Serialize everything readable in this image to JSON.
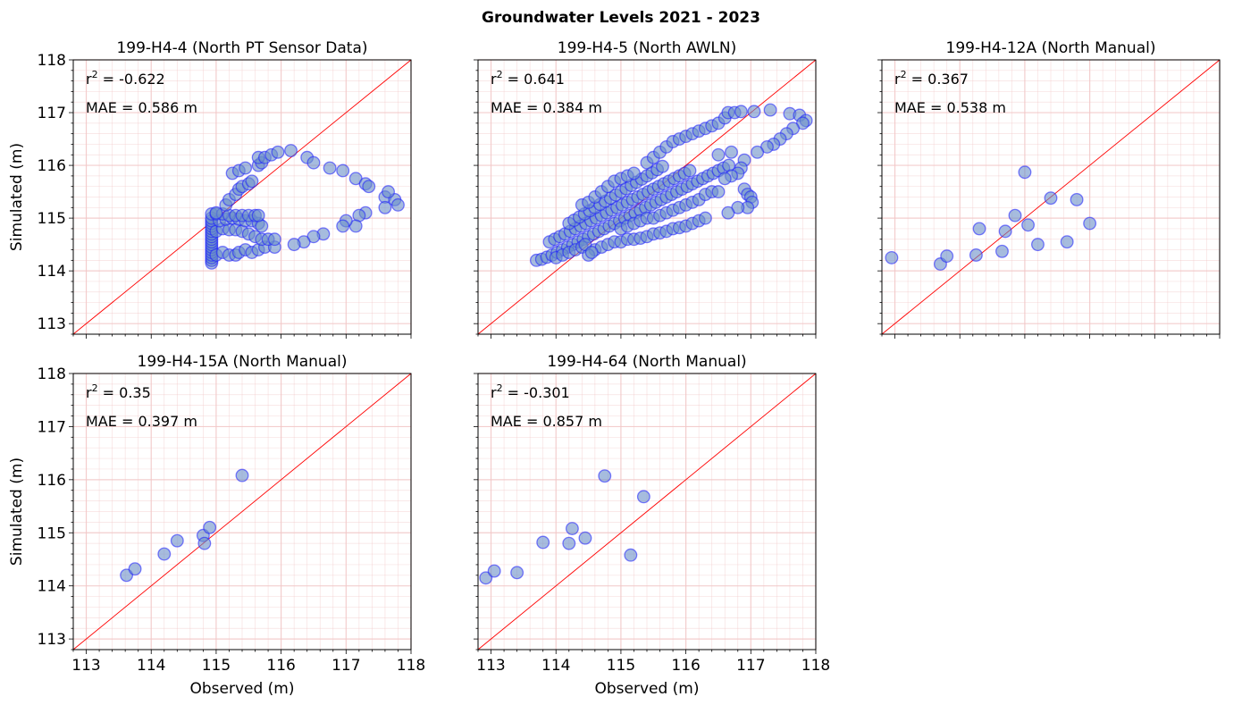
{
  "figure": {
    "title": "Groundwater Levels 2021 - 2023"
  },
  "axes_text": {
    "ylabel": "Simulated (m)",
    "xlabel": "Observed (m)"
  },
  "style": {
    "point_fill": "#6a8fc8",
    "point_stroke": "#1a1aff",
    "identity_line": "#ff0000",
    "grid": "#f2c8c8"
  },
  "chart_data": [
    {
      "type": "scatter",
      "title": "199-H4-4 (North PT Sensor Data)",
      "r2": "-0.622",
      "mae_label": "MAE = 0.586 m",
      "xlim": [
        112.8,
        118
      ],
      "ylim": [
        112.8,
        118
      ],
      "ticks": [
        113,
        114,
        115,
        116,
        117,
        118
      ],
      "points": [
        [
          114.93,
          114.15
        ],
        [
          114.93,
          114.2
        ],
        [
          114.93,
          114.25
        ],
        [
          114.93,
          114.3
        ],
        [
          114.93,
          114.35
        ],
        [
          114.93,
          114.4
        ],
        [
          114.93,
          114.45
        ],
        [
          114.93,
          114.5
        ],
        [
          114.93,
          114.55
        ],
        [
          114.93,
          114.6
        ],
        [
          114.93,
          114.65
        ],
        [
          114.93,
          114.7
        ],
        [
          114.93,
          114.75
        ],
        [
          114.93,
          114.8
        ],
        [
          114.93,
          114.85
        ],
        [
          114.93,
          114.9
        ],
        [
          114.93,
          114.95
        ],
        [
          114.93,
          115.0
        ],
        [
          114.93,
          115.08
        ],
        [
          115.0,
          114.3
        ],
        [
          115.1,
          114.35
        ],
        [
          115.2,
          114.3
        ],
        [
          115.3,
          114.3
        ],
        [
          115.35,
          114.35
        ],
        [
          115.45,
          114.4
        ],
        [
          115.55,
          114.35
        ],
        [
          115.65,
          114.4
        ],
        [
          115.75,
          114.45
        ],
        [
          115.9,
          114.45
        ],
        [
          115.0,
          114.75
        ],
        [
          115.1,
          114.8
        ],
        [
          115.2,
          114.78
        ],
        [
          115.3,
          114.78
        ],
        [
          115.4,
          114.75
        ],
        [
          115.5,
          114.7
        ],
        [
          115.6,
          114.65
        ],
        [
          115.7,
          114.6
        ],
        [
          115.8,
          114.6
        ],
        [
          115.9,
          114.6
        ],
        [
          115.05,
          114.95
        ],
        [
          115.15,
          114.98
        ],
        [
          115.25,
          115.0
        ],
        [
          115.35,
          114.98
        ],
        [
          115.45,
          114.95
        ],
        [
          115.55,
          114.95
        ],
        [
          115.65,
          114.9
        ],
        [
          115.7,
          114.85
        ],
        [
          115.0,
          115.08
        ],
        [
          115.1,
          115.08
        ],
        [
          115.2,
          115.05
        ],
        [
          115.3,
          115.05
        ],
        [
          115.4,
          115.05
        ],
        [
          115.5,
          115.05
        ],
        [
          115.6,
          115.05
        ],
        [
          115.65,
          115.05
        ],
        [
          115.0,
          115.1
        ],
        [
          115.15,
          115.25
        ],
        [
          115.2,
          115.35
        ],
        [
          115.3,
          115.45
        ],
        [
          115.35,
          115.55
        ],
        [
          115.4,
          115.6
        ],
        [
          115.5,
          115.65
        ],
        [
          115.55,
          115.7
        ],
        [
          115.25,
          115.85
        ],
        [
          115.35,
          115.9
        ],
        [
          115.45,
          115.95
        ],
        [
          115.65,
          116.0
        ],
        [
          115.7,
          116.05
        ],
        [
          115.65,
          116.15
        ],
        [
          115.75,
          116.15
        ],
        [
          115.85,
          116.2
        ],
        [
          115.95,
          116.25
        ],
        [
          116.15,
          116.28
        ],
        [
          116.4,
          116.15
        ],
        [
          116.5,
          116.05
        ],
        [
          116.75,
          115.95
        ],
        [
          116.95,
          115.9
        ],
        [
          117.15,
          115.75
        ],
        [
          117.3,
          115.65
        ],
        [
          117.35,
          115.6
        ],
        [
          117.6,
          115.4
        ],
        [
          117.75,
          115.35
        ],
        [
          117.8,
          115.25
        ],
        [
          117.65,
          115.5
        ],
        [
          117.6,
          115.2
        ],
        [
          117.3,
          115.1
        ],
        [
          117.2,
          115.05
        ],
        [
          117.15,
          114.85
        ],
        [
          117.0,
          114.95
        ],
        [
          116.95,
          114.85
        ],
        [
          116.65,
          114.7
        ],
        [
          116.5,
          114.65
        ],
        [
          116.35,
          114.55
        ],
        [
          116.2,
          114.5
        ]
      ]
    },
    {
      "type": "scatter",
      "title": "199-H4-5 (North AWLN)",
      "r2": "0.641",
      "mae_label": "MAE = 0.384 m",
      "xlim": [
        112.8,
        118
      ],
      "ylim": [
        112.8,
        118
      ],
      "ticks": [
        113,
        114,
        115,
        116,
        117,
        118
      ],
      "points": [
        [
          113.7,
          114.2
        ],
        [
          113.78,
          114.22
        ],
        [
          113.86,
          114.26
        ],
        [
          113.94,
          114.3
        ],
        [
          114.02,
          114.35
        ],
        [
          114.1,
          114.4
        ],
        [
          114.18,
          114.45
        ],
        [
          114.26,
          114.5
        ],
        [
          114.34,
          114.55
        ],
        [
          114.42,
          114.6
        ],
        [
          114.5,
          114.65
        ],
        [
          114.58,
          114.7
        ],
        [
          114.66,
          114.75
        ],
        [
          114.74,
          114.8
        ],
        [
          114.82,
          114.85
        ],
        [
          114.9,
          114.9
        ],
        [
          114.98,
          114.95
        ],
        [
          115.06,
          115.0
        ],
        [
          115.14,
          115.05
        ],
        [
          115.22,
          115.1
        ],
        [
          115.3,
          115.15
        ],
        [
          115.38,
          115.2
        ],
        [
          115.46,
          115.25
        ],
        [
          115.54,
          115.3
        ],
        [
          115.62,
          115.35
        ],
        [
          115.7,
          115.4
        ],
        [
          115.78,
          115.45
        ],
        [
          115.86,
          115.5
        ],
        [
          115.94,
          115.55
        ],
        [
          116.02,
          115.6
        ],
        [
          116.1,
          115.65
        ],
        [
          116.18,
          115.7
        ],
        [
          116.26,
          115.75
        ],
        [
          116.34,
          115.8
        ],
        [
          116.42,
          115.85
        ],
        [
          116.5,
          115.9
        ],
        [
          116.58,
          115.95
        ],
        [
          116.66,
          116.0
        ],
        [
          113.9,
          114.55
        ],
        [
          113.98,
          114.6
        ],
        [
          114.06,
          114.65
        ],
        [
          114.14,
          114.7
        ],
        [
          114.22,
          114.75
        ],
        [
          114.3,
          114.8
        ],
        [
          114.38,
          114.85
        ],
        [
          114.46,
          114.9
        ],
        [
          114.54,
          114.95
        ],
        [
          114.62,
          115.0
        ],
        [
          114.7,
          115.05
        ],
        [
          114.78,
          115.1
        ],
        [
          114.86,
          115.15
        ],
        [
          114.94,
          115.2
        ],
        [
          115.02,
          115.25
        ],
        [
          115.1,
          115.3
        ],
        [
          115.18,
          115.35
        ],
        [
          115.26,
          115.4
        ],
        [
          115.34,
          115.45
        ],
        [
          115.42,
          115.5
        ],
        [
          115.5,
          115.55
        ],
        [
          115.58,
          115.6
        ],
        [
          115.66,
          115.65
        ],
        [
          115.74,
          115.7
        ],
        [
          115.82,
          115.75
        ],
        [
          115.9,
          115.8
        ],
        [
          115.98,
          115.85
        ],
        [
          116.06,
          115.9
        ],
        [
          114.2,
          114.9
        ],
        [
          114.28,
          114.96
        ],
        [
          114.36,
          115.02
        ],
        [
          114.44,
          115.08
        ],
        [
          114.52,
          115.14
        ],
        [
          114.6,
          115.2
        ],
        [
          114.68,
          115.26
        ],
        [
          114.76,
          115.32
        ],
        [
          114.84,
          115.38
        ],
        [
          114.92,
          115.44
        ],
        [
          115.0,
          115.5
        ],
        [
          115.08,
          115.56
        ],
        [
          115.16,
          115.62
        ],
        [
          115.24,
          115.68
        ],
        [
          115.32,
          115.74
        ],
        [
          115.4,
          115.8
        ],
        [
          115.48,
          115.86
        ],
        [
          115.56,
          115.92
        ],
        [
          115.64,
          115.98
        ],
        [
          115.4,
          116.05
        ],
        [
          115.5,
          116.15
        ],
        [
          115.6,
          116.25
        ],
        [
          115.7,
          116.35
        ],
        [
          115.8,
          116.45
        ],
        [
          115.9,
          116.5
        ],
        [
          116.0,
          116.55
        ],
        [
          116.1,
          116.6
        ],
        [
          116.2,
          116.65
        ],
        [
          116.3,
          116.7
        ],
        [
          116.4,
          116.75
        ],
        [
          116.5,
          116.8
        ],
        [
          116.6,
          116.9
        ],
        [
          116.65,
          117.0
        ],
        [
          116.75,
          117.0
        ],
        [
          116.85,
          117.02
        ],
        [
          117.05,
          117.02
        ],
        [
          117.3,
          117.05
        ],
        [
          117.6,
          116.98
        ],
        [
          117.75,
          116.95
        ],
        [
          117.85,
          116.85
        ],
        [
          117.8,
          116.8
        ],
        [
          117.65,
          116.7
        ],
        [
          117.55,
          116.6
        ],
        [
          117.45,
          116.5
        ],
        [
          117.35,
          116.4
        ],
        [
          117.25,
          116.35
        ],
        [
          117.1,
          116.25
        ],
        [
          116.9,
          116.1
        ],
        [
          116.85,
          115.95
        ],
        [
          116.8,
          115.85
        ],
        [
          116.7,
          115.8
        ],
        [
          116.6,
          115.75
        ],
        [
          116.5,
          116.2
        ],
        [
          116.7,
          116.25
        ],
        [
          116.9,
          115.55
        ],
        [
          116.95,
          115.45
        ],
        [
          117.0,
          115.4
        ],
        [
          117.02,
          115.3
        ],
        [
          116.95,
          115.2
        ],
        [
          116.8,
          115.2
        ],
        [
          116.65,
          115.1
        ],
        [
          114.6,
          114.4
        ],
        [
          114.7,
          114.45
        ],
        [
          114.8,
          114.5
        ],
        [
          114.9,
          114.55
        ],
        [
          115.0,
          114.55
        ],
        [
          115.1,
          114.6
        ],
        [
          115.2,
          114.6
        ],
        [
          115.3,
          114.62
        ],
        [
          115.4,
          114.65
        ],
        [
          115.5,
          114.7
        ],
        [
          115.6,
          114.72
        ],
        [
          115.7,
          114.75
        ],
        [
          115.8,
          114.8
        ],
        [
          115.9,
          114.82
        ],
        [
          116.0,
          114.85
        ],
        [
          116.1,
          114.9
        ],
        [
          116.2,
          114.95
        ],
        [
          116.3,
          115.0
        ],
        [
          115.0,
          114.8
        ],
        [
          115.1,
          114.85
        ],
        [
          115.2,
          114.9
        ],
        [
          115.3,
          114.95
        ],
        [
          115.4,
          115.0
        ],
        [
          115.5,
          115.0
        ],
        [
          115.6,
          115.05
        ],
        [
          115.7,
          115.1
        ],
        [
          115.8,
          115.15
        ],
        [
          115.9,
          115.2
        ],
        [
          116.0,
          115.25
        ],
        [
          116.1,
          115.3
        ],
        [
          116.2,
          115.35
        ],
        [
          116.3,
          115.45
        ],
        [
          116.4,
          115.5
        ],
        [
          116.5,
          115.5
        ],
        [
          114.4,
          115.25
        ],
        [
          114.5,
          115.3
        ],
        [
          114.6,
          115.4
        ],
        [
          114.7,
          115.5
        ],
        [
          114.8,
          115.6
        ],
        [
          114.9,
          115.7
        ],
        [
          115.0,
          115.75
        ],
        [
          115.1,
          115.8
        ],
        [
          115.2,
          115.85
        ],
        [
          114.0,
          114.25
        ],
        [
          114.1,
          114.3
        ],
        [
          114.2,
          114.35
        ],
        [
          114.3,
          114.4
        ],
        [
          114.4,
          114.45
        ],
        [
          114.5,
          114.3
        ],
        [
          114.45,
          114.5
        ],
        [
          114.55,
          114.35
        ]
      ]
    },
    {
      "type": "scatter",
      "title": "199-H4-12A (North Manual)",
      "r2": "0.367",
      "mae_label": "MAE = 0.538 m",
      "xlim": [
        112.8,
        118
      ],
      "ylim": [
        112.8,
        118
      ],
      "ticks": [
        113,
        114,
        115,
        116,
        117,
        118
      ],
      "points": [
        [
          112.95,
          114.25
        ],
        [
          113.7,
          114.13
        ],
        [
          113.8,
          114.28
        ],
        [
          114.25,
          114.3
        ],
        [
          114.3,
          114.8
        ],
        [
          114.65,
          114.37
        ],
        [
          114.7,
          114.75
        ],
        [
          114.85,
          115.05
        ],
        [
          115.05,
          114.87
        ],
        [
          115.0,
          115.87
        ],
        [
          115.2,
          114.5
        ],
        [
          115.4,
          115.38
        ],
        [
          115.65,
          114.55
        ],
        [
          115.8,
          115.35
        ],
        [
          116.0,
          114.9
        ]
      ]
    },
    {
      "type": "scatter",
      "title": "199-H4-15A (North Manual)",
      "r2": "0.35",
      "mae_label": "MAE = 0.397 m",
      "xlim": [
        112.8,
        118
      ],
      "ylim": [
        112.8,
        118
      ],
      "ticks": [
        113,
        114,
        115,
        116,
        117,
        118
      ],
      "points": [
        [
          113.62,
          114.2
        ],
        [
          113.75,
          114.32
        ],
        [
          114.2,
          114.6
        ],
        [
          114.4,
          114.85
        ],
        [
          114.8,
          114.95
        ],
        [
          114.82,
          114.8
        ],
        [
          114.9,
          115.1
        ],
        [
          115.4,
          116.08
        ]
      ]
    },
    {
      "type": "scatter",
      "title": "199-H4-64 (North Manual)",
      "r2": "-0.301",
      "mae_label": "MAE = 0.857 m",
      "xlim": [
        112.8,
        118
      ],
      "ylim": [
        112.8,
        118
      ],
      "ticks": [
        113,
        114,
        115,
        116,
        117,
        118
      ],
      "points": [
        [
          112.92,
          114.15
        ],
        [
          113.05,
          114.28
        ],
        [
          113.4,
          114.25
        ],
        [
          113.8,
          114.82
        ],
        [
          114.2,
          114.8
        ],
        [
          114.25,
          115.08
        ],
        [
          114.45,
          114.9
        ],
        [
          114.75,
          116.07
        ],
        [
          115.15,
          114.58
        ],
        [
          115.35,
          115.68
        ]
      ]
    }
  ]
}
